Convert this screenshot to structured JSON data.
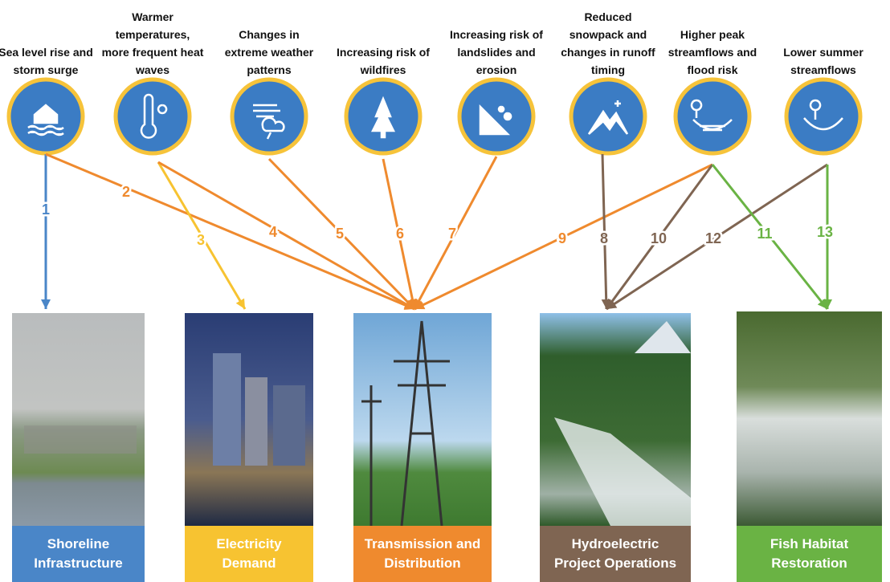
{
  "impacts": [
    {
      "label": "Sea level rise and storm surge"
    },
    {
      "label": "Warmer temperatures, more frequent heat waves"
    },
    {
      "label": "Changes in extreme weather patterns"
    },
    {
      "label": "Increasing risk of wildfires"
    },
    {
      "label": "Increasing risk of landslides and erosion"
    },
    {
      "label": "Reduced snowpack and changes in runoff timing"
    },
    {
      "label": "Higher peak streamflows and flood risk"
    },
    {
      "label": "Lower summer streamflows"
    }
  ],
  "targets": [
    {
      "label": "Shoreline Infrastructure",
      "color": "#4a86c8"
    },
    {
      "label": "Electricity Demand",
      "color": "#f7c331"
    },
    {
      "label": "Transmission and Distribution",
      "color": "#ef8a2e"
    },
    {
      "label": "Hydroelectric Project Operations",
      "color": "#7f6552"
    },
    {
      "label": "Fish Habitat Restoration",
      "color": "#6ab344"
    }
  ],
  "links": [
    {
      "label": "1",
      "color": "#4a86c8"
    },
    {
      "label": "2",
      "color": "#ef8a2e"
    },
    {
      "label": "3",
      "color": "#f7c331"
    },
    {
      "label": "4",
      "color": "#ef8a2e"
    },
    {
      "label": "5",
      "color": "#ef8a2e"
    },
    {
      "label": "6",
      "color": "#ef8a2e"
    },
    {
      "label": "7",
      "color": "#ef8a2e"
    },
    {
      "label": "9",
      "color": "#ef8a2e"
    },
    {
      "label": "8",
      "color": "#7f6552"
    },
    {
      "label": "10",
      "color": "#7f6552"
    },
    {
      "label": "12",
      "color": "#7f6552"
    },
    {
      "label": "11",
      "color": "#6ab344"
    },
    {
      "label": "13",
      "color": "#6ab344"
    }
  ]
}
